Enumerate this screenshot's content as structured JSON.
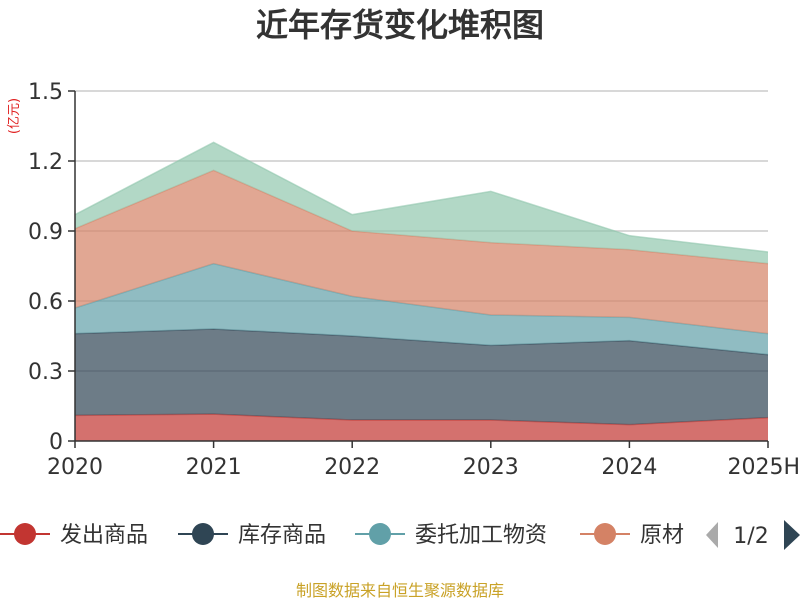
{
  "chart_data": {
    "type": "area",
    "title": "近年存货变化堆积图",
    "unit_label": "(亿元)",
    "categories": [
      "2020",
      "2021",
      "2022",
      "2023",
      "2024",
      "2025H"
    ],
    "ylim": [
      0,
      1.5
    ],
    "yticks": [
      "0",
      "0.3",
      "0.6",
      "0.9",
      "1.2",
      "1.5"
    ],
    "stacked": true,
    "grid": true,
    "legend_position": "bottom",
    "series": [
      {
        "name": "发出商品",
        "color": "#c23531",
        "values": [
          0.11,
          0.115,
          0.09,
          0.09,
          0.07,
          0.1
        ]
      },
      {
        "name": "库存商品",
        "color": "#2f4554",
        "values": [
          0.35,
          0.365,
          0.36,
          0.32,
          0.36,
          0.27
        ]
      },
      {
        "name": "委托加工物资",
        "color": "#61a0a8",
        "values": [
          0.11,
          0.28,
          0.17,
          0.13,
          0.1,
          0.09
        ]
      },
      {
        "name": "原材料",
        "color": "#d48265",
        "values": [
          0.34,
          0.4,
          0.28,
          0.31,
          0.29,
          0.3
        ]
      },
      {
        "name": "",
        "color": "#91c7ae",
        "values": [
          0.06,
          0.12,
          0.07,
          0.22,
          0.06,
          0.05
        ]
      }
    ]
  },
  "legend": {
    "items": [
      "发出商品",
      "库存商品",
      "委托加工物资",
      "原材"
    ],
    "page_indicator": "1/2"
  },
  "source_text": "制图数据来自恒生聚源数据库"
}
